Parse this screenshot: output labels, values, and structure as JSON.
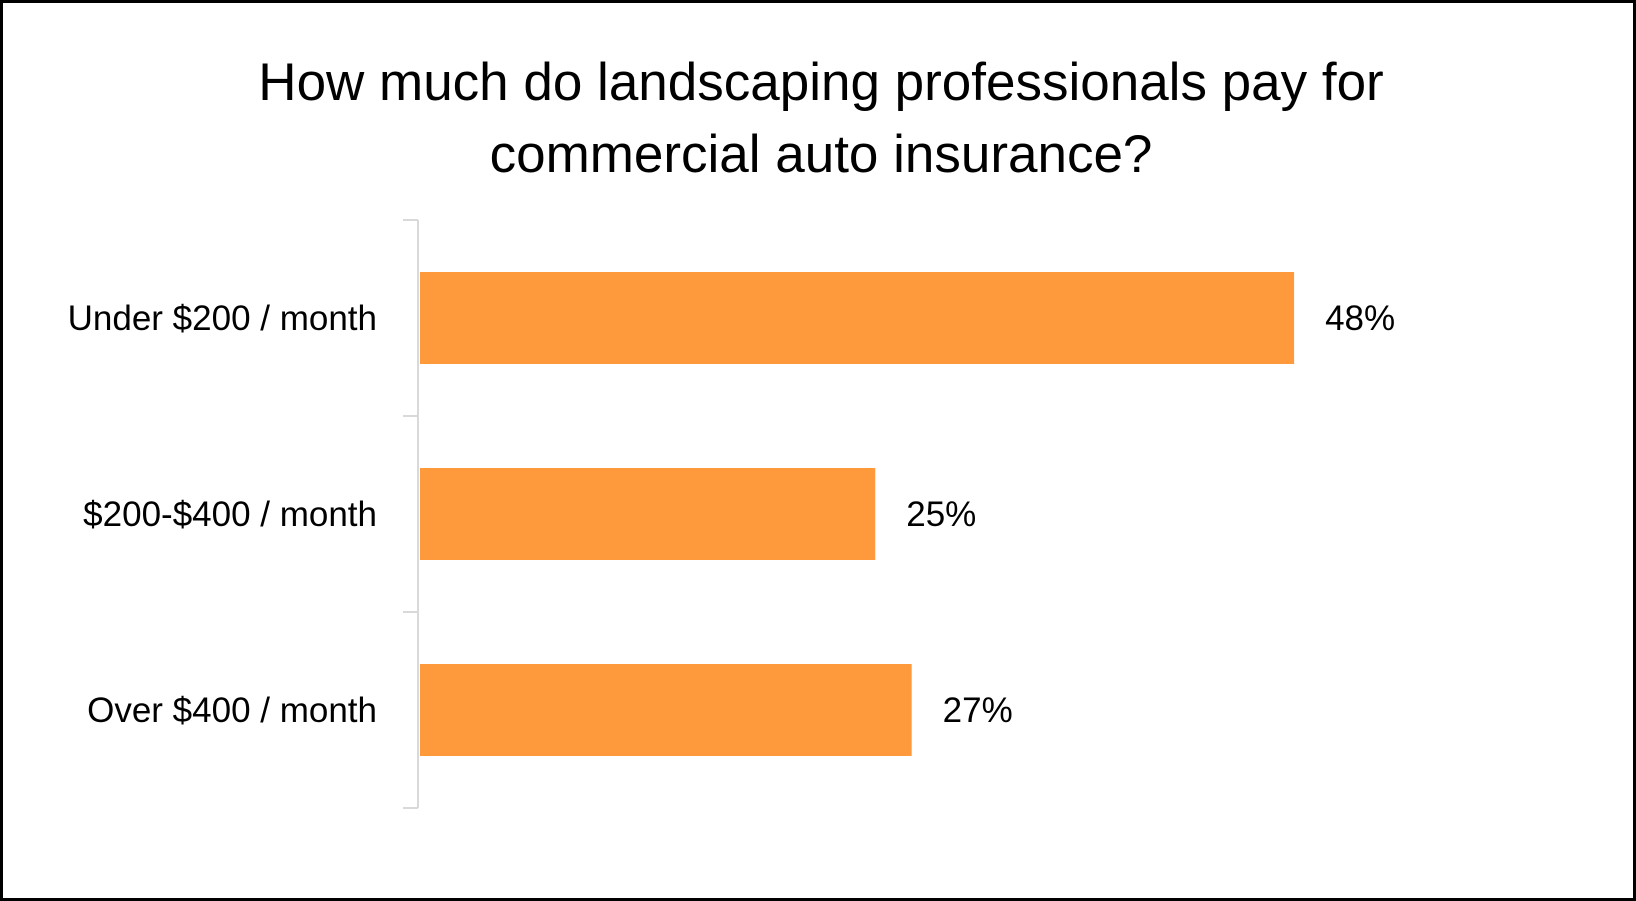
{
  "chart_data": {
    "type": "bar",
    "orientation": "horizontal",
    "title": "How much do landscaping professionals pay for\ncommercial auto insurance?",
    "categories": [
      "Under $200 / month",
      "$200-$400 / month",
      "Over $400 / month"
    ],
    "values": [
      48,
      25,
      27
    ],
    "value_labels": [
      "48%",
      "25%",
      "27%"
    ],
    "unit": "%",
    "xlim": [
      0,
      50
    ],
    "bar_color": "#FF9A3C",
    "axis_color": "#D9D9D9",
    "grid": false,
    "legend": "none"
  }
}
